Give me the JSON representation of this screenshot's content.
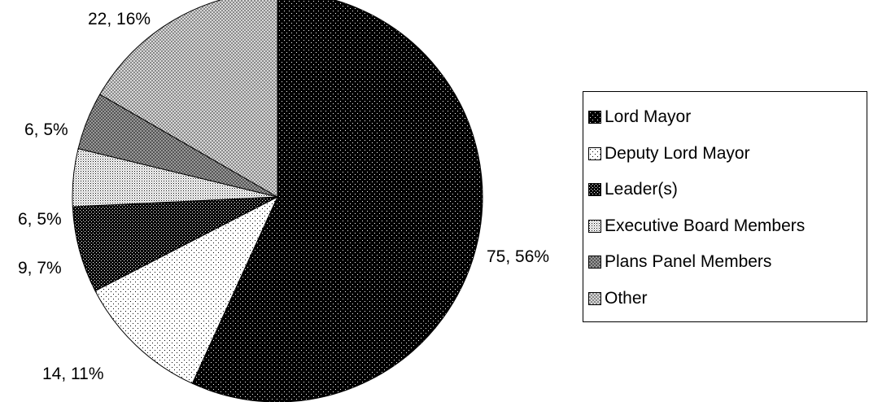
{
  "chart_data": {
    "type": "pie",
    "title": "",
    "slices": [
      {
        "name": "Lord Mayor",
        "value": 75,
        "percent": 56,
        "label": "75, 56%",
        "pattern": "dark-dots"
      },
      {
        "name": "Deputy Lord Mayor",
        "value": 14,
        "percent": 11,
        "label": "14, 11%",
        "pattern": "light-dots"
      },
      {
        "name": "Leader(s)",
        "value": 9,
        "percent": 7,
        "label": "9, 7%",
        "pattern": "dark-check"
      },
      {
        "name": "Executive Board Members",
        "value": 6,
        "percent": 5,
        "label": "6, 5%",
        "pattern": "light-fine"
      },
      {
        "name": "Plans Panel Members",
        "value": 6,
        "percent": 5,
        "label": "6, 5%",
        "pattern": "mid-check"
      },
      {
        "name": "Other",
        "value": 22,
        "percent": 16,
        "label": "22, 16%",
        "pattern": "light-check"
      }
    ],
    "legend_position": "right",
    "start_angle": "12 o'clock",
    "direction": "clockwise"
  }
}
